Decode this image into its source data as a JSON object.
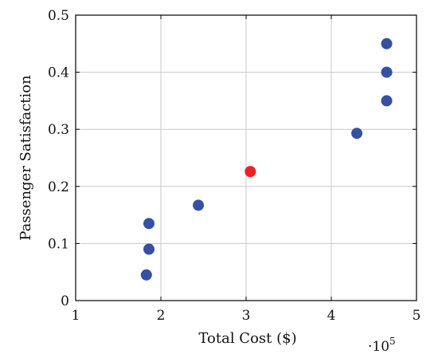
{
  "chart_data": {
    "type": "scatter",
    "xlabel": "Total Cost ($)",
    "ylabel": "Passenger Satisfaction",
    "x_multiplier_label": "·10",
    "x_multiplier_exponent": "5",
    "xlim": [
      1,
      5
    ],
    "ylim": [
      0,
      0.5
    ],
    "x_ticks": [
      1,
      2,
      3,
      4,
      5
    ],
    "x_tick_labels": [
      "1",
      "2",
      "3",
      "4",
      "5"
    ],
    "y_ticks": [
      0,
      0.1,
      0.2,
      0.3,
      0.4,
      0.5
    ],
    "y_tick_labels": [
      "0",
      "0.1",
      "0.2",
      "0.3",
      "0.4",
      "0.5"
    ],
    "grid": true,
    "series": [
      {
        "color": "#3650a2",
        "points": [
          {
            "x": 1.83,
            "y": 0.045
          },
          {
            "x": 1.86,
            "y": 0.09
          },
          {
            "x": 1.86,
            "y": 0.135
          },
          {
            "x": 2.44,
            "y": 0.167
          },
          {
            "x": 4.3,
            "y": 0.293
          },
          {
            "x": 4.65,
            "y": 0.35
          },
          {
            "x": 4.65,
            "y": 0.4
          },
          {
            "x": 4.65,
            "y": 0.45
          }
        ]
      },
      {
        "color": "#ee2027",
        "points": [
          {
            "x": 3.05,
            "y": 0.226
          }
        ]
      }
    ]
  }
}
